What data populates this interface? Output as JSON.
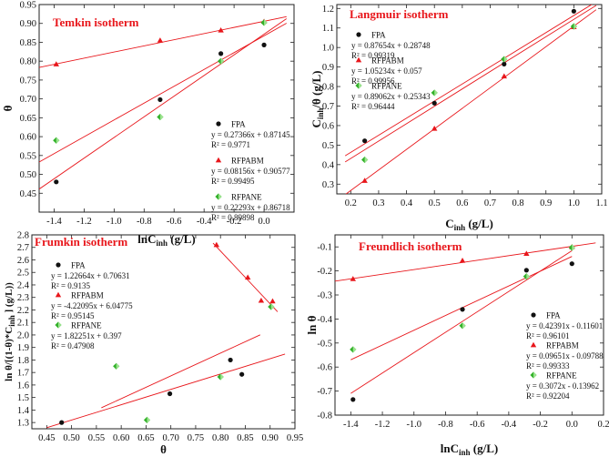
{
  "chart_data": [
    {
      "type": "scatter",
      "title": "Temkin isotherm",
      "xlabel": "lnC",
      "xlabel_sub": "inh",
      "xlabel_unit": " (g/L)",
      "ylabel": "θ",
      "xlim": [
        -1.5,
        0.2
      ],
      "ylim": [
        0.4,
        0.95
      ],
      "xticks": [
        -1.4,
        -1.2,
        -1.0,
        -0.8,
        -0.6,
        -0.4,
        -0.2,
        0.0
      ],
      "xtick_labels": [
        "-1.4",
        "-1.2",
        "-1.0",
        "-0.8",
        "-0.6",
        "-0.4",
        "-0.2",
        "0.0"
      ],
      "yticks": [
        0.45,
        0.5,
        0.55,
        0.6,
        0.65,
        0.7,
        0.75,
        0.8,
        0.85,
        0.9,
        0.95
      ],
      "ytick_labels": [
        "0.45",
        "0.50",
        "0.55",
        "0.60",
        "0.65",
        "0.70",
        "0.75",
        "0.80",
        "0.85",
        "0.90",
        "0.95"
      ],
      "legend_position": "center-right",
      "series": [
        {
          "name": "FPA",
          "marker": "circle",
          "color": "#111111",
          "x": [
            -1.386,
            -0.693,
            -0.288,
            0.0
          ],
          "y": [
            0.48,
            0.698,
            0.82,
            0.843
          ],
          "fit": {
            "slope": 0.27366,
            "intercept": 0.87145,
            "range": [
              -1.5,
              0.15
            ]
          },
          "equation": "y = 0.27366x + 0.87145",
          "r2": "R² = 0.9771"
        },
        {
          "name": "RFPABM",
          "marker": "triangle",
          "color": "#e8161b",
          "x": [
            -1.386,
            -0.693,
            -0.288,
            0.0
          ],
          "y": [
            0.792,
            0.855,
            0.882,
            0.905
          ],
          "fit": {
            "slope": 0.08156,
            "intercept": 0.90577,
            "range": [
              -1.5,
              0.15
            ]
          },
          "equation": "y = 0.08156x + 0.90577",
          "r2": "R² = 0.99495"
        },
        {
          "name": "RFPANE",
          "marker": "diamond",
          "color": "#33b12a",
          "x": [
            -1.386,
            -0.693,
            -0.288,
            0.0
          ],
          "y": [
            0.59,
            0.652,
            0.8,
            0.902
          ],
          "fit": {
            "slope": 0.22293,
            "intercept": 0.86718,
            "range": [
              -1.5,
              0.15
            ]
          },
          "equation": "y = 0.22293x + 0.86718",
          "r2": "R² = 0.89898"
        }
      ]
    },
    {
      "type": "scatter",
      "title": "Langmuir isotherm",
      "xlabel": "C",
      "xlabel_sub": "inh",
      "xlabel_unit": " (g/L)",
      "ylabel": "C",
      "ylabel_sub": "inh",
      "ylabel_unit": "/θ  (g/L)",
      "xlim": [
        0.15,
        1.1
      ],
      "ylim": [
        0.25,
        1.22
      ],
      "xticks": [
        0.2,
        0.3,
        0.4,
        0.5,
        0.6,
        0.7,
        0.8,
        0.9,
        1.0,
        1.1
      ],
      "xtick_labels": [
        "0.2",
        "0.3",
        "0.4",
        "0.5",
        "0.6",
        "0.7",
        "0.8",
        "0.9",
        "1.0",
        "1.1"
      ],
      "yticks": [
        0.3,
        0.4,
        0.5,
        0.6,
        0.7,
        0.8,
        0.9,
        1.0,
        1.1,
        1.2
      ],
      "ytick_labels": [
        "0.3",
        "0.4",
        "0.5",
        "0.6",
        "0.7",
        "0.8",
        "0.9",
        "1.0",
        "1.1",
        "1.2"
      ],
      "legend_position": "top-left",
      "series": [
        {
          "name": "FPA",
          "marker": "circle",
          "color": "#111111",
          "x": [
            0.25,
            0.5,
            0.75,
            1.0
          ],
          "y": [
            0.522,
            0.715,
            0.915,
            1.186
          ],
          "fit": {
            "slope": 0.87654,
            "intercept": 0.28748,
            "range": [
              0.18,
              1.08
            ]
          },
          "equation": "y = 0.87654x + 0.28748",
          "r2": "R² = 0.99319"
        },
        {
          "name": "RFPABM",
          "marker": "triangle",
          "color": "#e8161b",
          "x": [
            0.25,
            0.5,
            0.75,
            1.0
          ],
          "y": [
            0.318,
            0.585,
            0.853,
            1.105
          ],
          "fit": {
            "slope": 1.05234,
            "intercept": 0.057,
            "range": [
              0.18,
              1.08
            ]
          },
          "equation": "y = 1.05234x + 0.057",
          "r2": "R² = 0.99956"
        },
        {
          "name": "RFPANE",
          "marker": "diamond",
          "color": "#33b12a",
          "x": [
            0.25,
            0.5,
            0.75,
            1.0
          ],
          "y": [
            0.425,
            0.768,
            0.94,
            1.108
          ],
          "fit": {
            "slope": 0.89062,
            "intercept": 0.25343,
            "range": [
              0.18,
              1.08
            ]
          },
          "equation": "y = 0.89062x + 0.25343",
          "r2": "R² = 0.96444"
        }
      ]
    },
    {
      "type": "scatter",
      "title": "Frumkin isotherm",
      "xlabel": "θ",
      "ylabel": "ln θ/[(1-θ)*C",
      "ylabel_sub": "inh",
      "ylabel_unit": " ] (g/L))",
      "xlim": [
        0.42,
        0.95
      ],
      "ylim": [
        1.25,
        2.8
      ],
      "xticks": [
        0.45,
        0.5,
        0.55,
        0.6,
        0.65,
        0.7,
        0.75,
        0.8,
        0.85,
        0.9,
        0.95
      ],
      "xtick_labels": [
        "0.45",
        "0.50",
        "0.55",
        "0.60",
        "0.65",
        "0.70",
        "0.75",
        "0.80",
        "0.85",
        "0.90",
        "0.95"
      ],
      "yticks": [
        1.3,
        1.4,
        1.5,
        1.6,
        1.7,
        1.8,
        1.9,
        2.0,
        2.1,
        2.2,
        2.3,
        2.4,
        2.5,
        2.6,
        2.7,
        2.8
      ],
      "ytick_labels": [
        "1.3",
        "1.4",
        "1.5",
        "1.6",
        "1.7",
        "1.8",
        "1.9",
        "2.0",
        "2.1",
        "2.2",
        "2.3",
        "2.4",
        "2.5",
        "2.6",
        "2.7",
        "2.8"
      ],
      "legend_position": "top-left",
      "series": [
        {
          "name": "FPA",
          "marker": "circle",
          "color": "#111111",
          "x": [
            0.48,
            0.698,
            0.82,
            0.843
          ],
          "y": [
            1.3,
            1.53,
            1.8,
            1.685
          ],
          "fit": {
            "slope": 1.22664,
            "intercept": 0.70631,
            "range": [
              0.45,
              0.93
            ]
          },
          "equation": "y = 1.22664x + 0.70631",
          "r2": "R² = 0.9135"
        },
        {
          "name": "RFPABM",
          "marker": "triangle",
          "color": "#e8161b",
          "x": [
            0.792,
            0.855,
            0.882,
            0.905
          ],
          "y": [
            2.72,
            2.46,
            2.275,
            2.27
          ],
          "fit": {
            "slope": -4.22095,
            "intercept": 6.04775,
            "range": [
              0.785,
              0.915
            ]
          },
          "equation": "y = -4.22095x + 6.04775",
          "r2": "R² = 0.95145"
        },
        {
          "name": "RFPANE",
          "marker": "diamond",
          "color": "#33b12a",
          "x": [
            0.59,
            0.652,
            0.8,
            0.902
          ],
          "y": [
            1.75,
            1.32,
            1.665,
            2.225
          ],
          "fit": {
            "slope": 1.82251,
            "intercept": 0.397,
            "range": [
              0.56,
              0.88
            ]
          },
          "equation": "y = 1.82251x + 0.397",
          "r2": "R² = 0.47908"
        }
      ]
    },
    {
      "type": "scatter",
      "title": "Freundlich isotherm",
      "xlabel": "lnC",
      "xlabel_sub": "inh",
      "xlabel_unit": " (g/L)",
      "ylabel": "ln θ",
      "xlim": [
        -1.5,
        0.2
      ],
      "ylim": [
        -0.8,
        -0.05
      ],
      "xticks": [
        -1.4,
        -1.2,
        -1.0,
        -0.8,
        -0.6,
        -0.4,
        -0.2,
        0.0,
        0.2
      ],
      "xtick_labels": [
        "-1.4",
        "-1.2",
        "-1.0",
        "-0.8",
        "-0.6",
        "-0.4",
        "-0.2",
        "0.0",
        "0.2"
      ],
      "yticks": [
        -0.8,
        -0.7,
        -0.6,
        -0.5,
        -0.4,
        -0.3,
        -0.2,
        -0.1
      ],
      "ytick_labels": [
        "-0.8",
        "-0.7",
        "-0.6",
        "-0.5",
        "-0.4",
        "-0.3",
        "-0.2",
        "-0.1"
      ],
      "legend_position": "center-right",
      "series": [
        {
          "name": "FPA",
          "marker": "circle",
          "color": "#111111",
          "x": [
            -1.386,
            -0.693,
            -0.288,
            0.0
          ],
          "y": [
            -0.735,
            -0.36,
            -0.197,
            -0.17
          ],
          "fit": {
            "slope": 0.42391,
            "intercept": -0.11601,
            "range": [
              -1.4,
              0.0
            ]
          },
          "equation": "y = 0.42391x - 0.11601",
          "r2": "R² = 0.96101"
        },
        {
          "name": "RFPABM",
          "marker": "triangle",
          "color": "#e8161b",
          "x": [
            -1.386,
            -0.693,
            -0.288,
            0.0
          ],
          "y": [
            -0.233,
            -0.157,
            -0.128,
            -0.1
          ],
          "fit": {
            "slope": 0.09651,
            "intercept": -0.09788,
            "range": [
              -1.5,
              0.15
            ]
          },
          "equation": "y = 0.09651x - 0.09788",
          "r2": "R² = 0.99333"
        },
        {
          "name": "RFPANE",
          "marker": "diamond",
          "color": "#33b12a",
          "x": [
            -1.386,
            -0.693,
            -0.288,
            0.0
          ],
          "y": [
            -0.527,
            -0.428,
            -0.223,
            -0.103
          ],
          "fit": {
            "slope": 0.3072,
            "intercept": -0.13962,
            "range": [
              -1.4,
              0.0
            ]
          },
          "equation": "y = 0.3072x - 0.13962",
          "r2": "R² = 0.92204"
        }
      ]
    }
  ]
}
